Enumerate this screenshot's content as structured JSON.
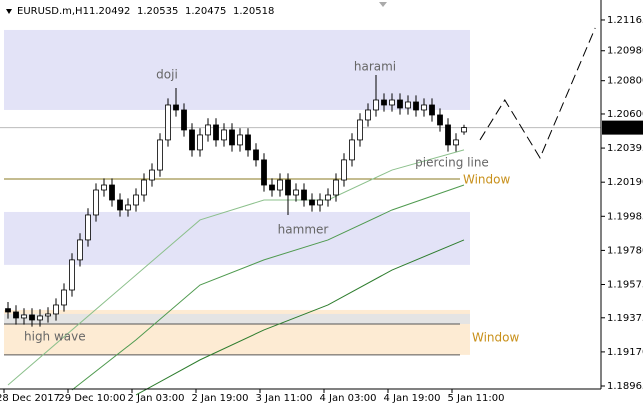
{
  "chart_data": {
    "type": "candlestick",
    "header": {
      "symbol": "EURUSD.m,H1",
      "open": 1.20492,
      "high": 1.20535,
      "low": 1.20475,
      "close": 1.20518
    },
    "x_labels": [
      "28 Dec 2017",
      "29 Dec 10:00",
      "2 Jan 03:00",
      "2 Jan 19:00",
      "3 Jan 11:00",
      "4 Jan 03:00",
      "4 Jan 19:00",
      "5 Jan 11:00"
    ],
    "ylim": [
      1.18947,
      1.21285
    ],
    "yticks": [
      1.21165,
      {
        "value": 1.2098,
        "label": "1.20980"
      },
      {
        "value": 1.208,
        "label": "1.20800"
      },
      {
        "value": 1.206,
        "label": "1.20600"
      },
      1.20395,
      {
        "value": 1.2019,
        "label": "1.20190"
      },
      1.19985,
      {
        "value": 1.1978,
        "label": "1.19780"
      },
      1.19575,
      1.19375,
      {
        "value": 1.1917,
        "label": "1.19170"
      },
      1.18965
    ],
    "candles": [
      [
        1.1943,
        1.1947,
        1.1937,
        1.1941
      ],
      [
        1.1941,
        1.1945,
        1.19334,
        1.19374
      ],
      [
        1.19374,
        1.19432,
        1.19334,
        1.19392
      ],
      [
        1.19392,
        1.19432,
        1.19322,
        1.19362
      ],
      [
        1.19362,
        1.19426,
        1.19322,
        1.19386
      ],
      [
        1.19386,
        1.19438,
        1.19346,
        1.19398
      ],
      [
        1.19398,
        1.19492,
        1.19358,
        1.19452
      ],
      [
        1.19452,
        1.19582,
        1.19412,
        1.19542
      ],
      [
        1.19542,
        1.19763,
        1.19502,
        1.19723
      ],
      [
        1.19723,
        1.19883,
        1.19683,
        1.19843
      ],
      [
        1.19843,
        1.20033,
        1.19803,
        1.19993
      ],
      [
        1.19993,
        1.20183,
        1.19953,
        1.20143
      ],
      [
        1.20143,
        1.20213,
        1.20103,
        1.20173
      ],
      [
        1.20173,
        1.20213,
        1.20043,
        1.20083
      ],
      [
        1.20083,
        1.20123,
        1.19983,
        1.20023
      ],
      [
        1.20023,
        1.20093,
        1.19983,
        1.20053
      ],
      [
        1.20053,
        1.20153,
        1.20013,
        1.20113
      ],
      [
        1.20113,
        1.20243,
        1.20073,
        1.20203
      ],
      [
        1.20203,
        1.20303,
        1.20163,
        1.20263
      ],
      [
        1.20263,
        1.20484,
        1.20223,
        1.20444
      ],
      [
        1.20444,
        1.20694,
        1.20404,
        1.20654
      ],
      [
        1.20654,
        1.20756,
        1.20584,
        1.20624
      ],
      [
        1.20624,
        1.20664,
        1.20464,
        1.20504
      ],
      [
        1.20504,
        1.20544,
        1.20344,
        1.20384
      ],
      [
        1.20384,
        1.20514,
        1.20344,
        1.20474
      ],
      [
        1.20474,
        1.20574,
        1.20434,
        1.20534
      ],
      [
        1.20534,
        1.20574,
        1.20404,
        1.20444
      ],
      [
        1.20444,
        1.20544,
        1.20404,
        1.20504
      ],
      [
        1.20504,
        1.20544,
        1.20374,
        1.20414
      ],
      [
        1.20414,
        1.20514,
        1.20374,
        1.20474
      ],
      [
        1.20474,
        1.20514,
        1.20344,
        1.20384
      ],
      [
        1.20384,
        1.20424,
        1.20284,
        1.20324
      ],
      [
        1.20324,
        1.20364,
        1.20133,
        1.20173
      ],
      [
        1.20173,
        1.20213,
        1.20103,
        1.20143
      ],
      [
        1.20143,
        1.20243,
        1.20103,
        1.20203
      ],
      [
        1.20203,
        1.20243,
        1.19993,
        1.20113
      ],
      [
        1.20113,
        1.20183,
        1.20073,
        1.20143
      ],
      [
        1.20143,
        1.20183,
        1.20043,
        1.20083
      ],
      [
        1.20083,
        1.20123,
        1.20013,
        1.20053
      ],
      [
        1.20053,
        1.20123,
        1.20013,
        1.20083
      ],
      [
        1.20083,
        1.20153,
        1.20043,
        1.20113
      ],
      [
        1.20113,
        1.20243,
        1.20073,
        1.20203
      ],
      [
        1.20203,
        1.20364,
        1.20163,
        1.20324
      ],
      [
        1.20324,
        1.20484,
        1.20284,
        1.20444
      ],
      [
        1.20444,
        1.20604,
        1.20404,
        1.20564
      ],
      [
        1.20564,
        1.20664,
        1.20524,
        1.20624
      ],
      [
        1.20624,
        1.20834,
        1.20584,
        1.20684
      ],
      [
        1.20684,
        1.20724,
        1.20614,
        1.20654
      ],
      [
        1.20654,
        1.20724,
        1.20614,
        1.20684
      ],
      [
        1.20684,
        1.20724,
        1.20596,
        1.20636
      ],
      [
        1.20636,
        1.20712,
        1.20596,
        1.20672
      ],
      [
        1.20672,
        1.20712,
        1.20584,
        1.20624
      ],
      [
        1.20624,
        1.20694,
        1.20584,
        1.20654
      ],
      [
        1.20654,
        1.20694,
        1.20554,
        1.20594
      ],
      [
        1.20594,
        1.20634,
        1.20494,
        1.20534
      ],
      [
        1.20534,
        1.20574,
        1.20374,
        1.20414
      ],
      [
        1.20414,
        1.20484,
        1.20374,
        1.20444
      ],
      [
        1.20492,
        1.20535,
        1.20475,
        1.20518
      ]
    ],
    "moving_averages": [
      {
        "color": "#8cc08c",
        "x": [
          0,
          8,
          16,
          24,
          32,
          40,
          48,
          57
        ],
        "values": [
          1.18971,
          1.19302,
          1.19632,
          1.19963,
          1.20083,
          1.20083,
          1.20263,
          1.20384
        ]
      },
      {
        "color": "#4f9a4f",
        "x": [
          8,
          16,
          24,
          32,
          40,
          48,
          57
        ],
        "values": [
          1.18941,
          1.19242,
          1.19572,
          1.19723,
          1.19843,
          1.20023,
          1.20173
        ]
      },
      {
        "color": "#2e7d2e",
        "x": [
          16,
          24,
          32,
          40,
          48,
          57
        ],
        "values": [
          1.18911,
          1.19122,
          1.19302,
          1.19452,
          1.19662,
          1.19843
        ]
      }
    ],
    "zones": [
      {
        "from": 1.21105,
        "to": 1.20624,
        "color": "#e3e3f7"
      },
      {
        "from": 1.20011,
        "to": 1.19693,
        "color": "#e3e3f7"
      },
      {
        "from": 1.19422,
        "to": 1.19152,
        "color": "#fdebd3"
      },
      {
        "from": 1.19398,
        "to": 1.19338,
        "color": "#e4e4e4"
      }
    ],
    "levels": [
      {
        "value": 1.20209,
        "color": "#8a7a20"
      },
      {
        "value": 1.19338,
        "color": "#555555"
      },
      {
        "value": 1.19152,
        "color": "#555555"
      }
    ],
    "projection": {
      "x": [
        59,
        62.1,
        66.5,
        73.4
      ],
      "values": [
        1.20444,
        1.20684,
        1.20336,
        1.21117
      ]
    },
    "annotations": {
      "doji": "doji",
      "harami": "harami",
      "hammer": "hammer",
      "piercing": "piercing line",
      "window_top": "Window",
      "window_bottom": "Window",
      "high_wave": "high wave"
    }
  }
}
